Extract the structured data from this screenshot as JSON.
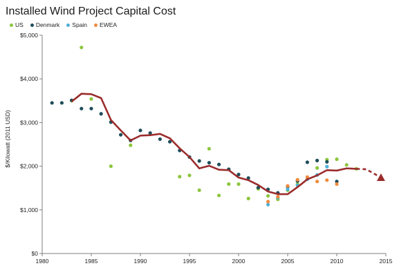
{
  "chart_data": {
    "type": "scatter",
    "title": "Installed Wind Project Capital Cost",
    "ylabel": "$/Kilowatt (2011 USD)",
    "xlabel": "",
    "xlim": [
      1980,
      2015
    ],
    "ylim": [
      0,
      5000
    ],
    "x_ticks": [
      "1980",
      "1985",
      "1990",
      "1995",
      "2000",
      "2005",
      "2010",
      "2015"
    ],
    "y_ticks": [
      "$0",
      "$1,000",
      "$2,000",
      "$3,000",
      "$4,000",
      "$5,000"
    ],
    "grid": false,
    "legend_position": "top-left",
    "series": [
      {
        "name": "US",
        "color": "#8dc63f",
        "points": [
          [
            1983,
            3500
          ],
          [
            1984,
            4720
          ],
          [
            1985,
            3540
          ],
          [
            1987,
            2000
          ],
          [
            1989,
            2480
          ],
          [
            1994,
            1760
          ],
          [
            1995,
            1790
          ],
          [
            1996,
            1450
          ],
          [
            1997,
            2400
          ],
          [
            1998,
            1330
          ],
          [
            1999,
            1590
          ],
          [
            2000,
            1590
          ],
          [
            2001,
            1260
          ],
          [
            2002,
            1480
          ],
          [
            2003,
            1320
          ],
          [
            2004,
            1240
          ],
          [
            2005,
            1450
          ],
          [
            2006,
            1590
          ],
          [
            2007,
            1700
          ],
          [
            2008,
            1960
          ],
          [
            2009,
            2150
          ],
          [
            2010,
            2160
          ],
          [
            2011,
            2030
          ],
          [
            2012,
            1940
          ]
        ]
      },
      {
        "name": "Denmark",
        "color": "#1f4e5a",
        "points": [
          [
            1981,
            3450
          ],
          [
            1982,
            3450
          ],
          [
            1983,
            3510
          ],
          [
            1984,
            3320
          ],
          [
            1985,
            3320
          ],
          [
            1986,
            3200
          ],
          [
            1987,
            3010
          ],
          [
            1988,
            2720
          ],
          [
            1989,
            2590
          ],
          [
            1990,
            2820
          ],
          [
            1991,
            2760
          ],
          [
            1992,
            2620
          ],
          [
            1993,
            2560
          ],
          [
            1994,
            2360
          ],
          [
            1995,
            2210
          ],
          [
            1996,
            2120
          ],
          [
            1997,
            2080
          ],
          [
            1998,
            2040
          ],
          [
            1999,
            1930
          ],
          [
            2000,
            1810
          ],
          [
            2001,
            1730
          ],
          [
            2002,
            1510
          ],
          [
            2003,
            1470
          ],
          [
            2004,
            1390
          ],
          [
            2005,
            1530
          ],
          [
            2006,
            1660
          ],
          [
            2007,
            2090
          ],
          [
            2008,
            2130
          ],
          [
            2009,
            2100
          ],
          [
            2010,
            1650
          ]
        ]
      },
      {
        "name": "Spain",
        "color": "#4fb0d9",
        "points": [
          [
            2003,
            1120
          ],
          [
            2004,
            1280
          ],
          [
            2005,
            1470
          ],
          [
            2006,
            1560
          ],
          [
            2007,
            1700
          ],
          [
            2008,
            1800
          ],
          [
            2009,
            1990
          ]
        ]
      },
      {
        "name": "EWEA",
        "color": "#f08a3c",
        "points": [
          [
            2003,
            1190
          ],
          [
            2004,
            1300
          ],
          [
            2005,
            1550
          ],
          [
            2006,
            1690
          ],
          [
            2007,
            1750
          ],
          [
            2008,
            1650
          ],
          [
            2009,
            1680
          ],
          [
            2010,
            1590
          ]
        ]
      }
    ],
    "trend": {
      "color": "#9b2c2c",
      "points": [
        [
          1983,
          3480
        ],
        [
          1984,
          3660
        ],
        [
          1985,
          3650
        ],
        [
          1986,
          3560
        ],
        [
          1987,
          3060
        ],
        [
          1988,
          2820
        ],
        [
          1989,
          2590
        ],
        [
          1990,
          2700
        ],
        [
          1991,
          2710
        ],
        [
          1992,
          2740
        ],
        [
          1993,
          2640
        ],
        [
          1994,
          2410
        ],
        [
          1995,
          2210
        ],
        [
          1996,
          1950
        ],
        [
          1997,
          2010
        ],
        [
          1998,
          1920
        ],
        [
          1999,
          1910
        ],
        [
          2000,
          1740
        ],
        [
          2001,
          1680
        ],
        [
          2002,
          1570
        ],
        [
          2003,
          1420
        ],
        [
          2004,
          1360
        ],
        [
          2005,
          1360
        ],
        [
          2006,
          1520
        ],
        [
          2007,
          1700
        ],
        [
          2008,
          1790
        ],
        [
          2009,
          1910
        ],
        [
          2010,
          1900
        ],
        [
          2011,
          1950
        ],
        [
          2012,
          1940
        ]
      ],
      "projection": [
        [
          2012,
          1940
        ],
        [
          2013,
          1930
        ],
        [
          2014.5,
          1740
        ]
      ]
    }
  }
}
